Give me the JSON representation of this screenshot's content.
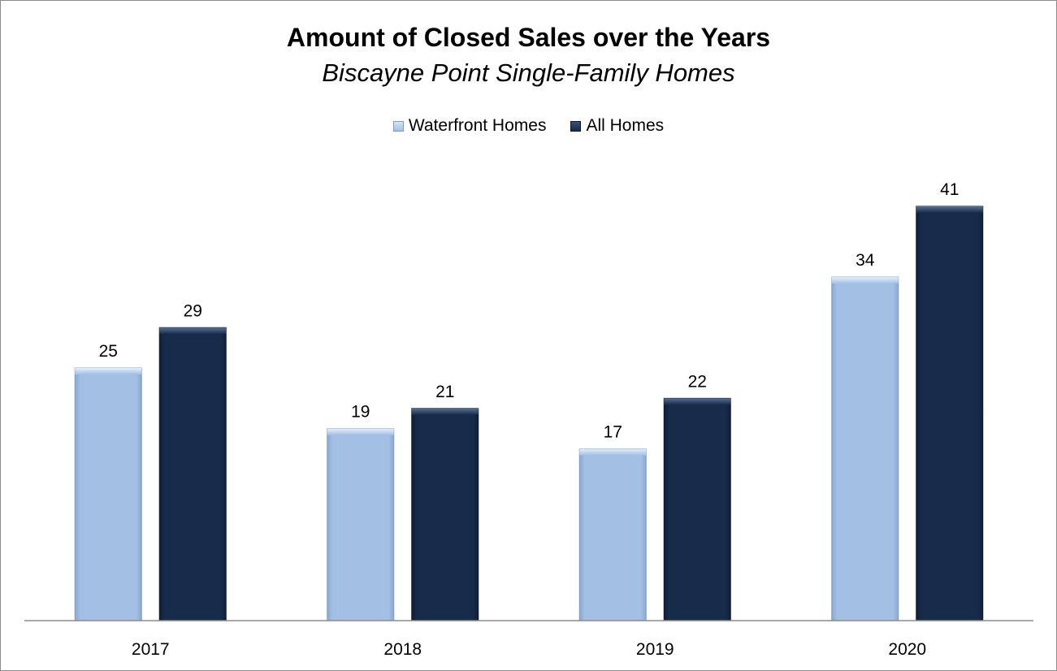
{
  "chart_data": {
    "type": "bar",
    "title": "Amount of Closed Sales over the Years",
    "subtitle": "Biscayne Point Single-Family Homes",
    "categories": [
      "2017",
      "2018",
      "2019",
      "2020"
    ],
    "series": [
      {
        "name": "Waterfront Homes",
        "values": [
          25,
          19,
          17,
          34
        ],
        "color": "#a3bfe3"
      },
      {
        "name": "All Homes",
        "values": [
          29,
          21,
          22,
          41
        ],
        "color": "#172b4a"
      }
    ],
    "ylim": [
      0,
      41
    ],
    "grid": false,
    "legend_position": "top-center",
    "data_labels": true
  }
}
